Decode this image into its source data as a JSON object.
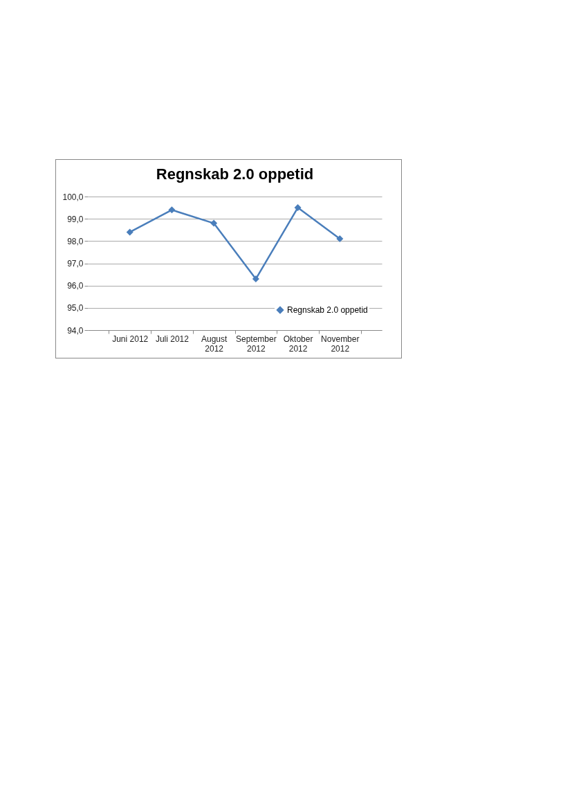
{
  "chart_data": {
    "type": "line",
    "title": "Regnskab 2.0 oppetid",
    "categories": [
      "Juni 2012",
      "Juli 2012",
      "August 2012",
      "September 2012",
      "Oktober 2012",
      "November 2012"
    ],
    "series": [
      {
        "name": "Regnskab 2.0 oppetid",
        "color": "#4a7ebb",
        "values": [
          98.4,
          99.4,
          98.8,
          96.3,
          99.5,
          98.1
        ]
      }
    ],
    "ylim": [
      94,
      100
    ],
    "yticks": [
      {
        "value": 94,
        "label": "94,0"
      },
      {
        "value": 95,
        "label": "95,0"
      },
      {
        "value": 96,
        "label": "96,0"
      },
      {
        "value": 97,
        "label": "97,0"
      },
      {
        "value": 98,
        "label": "98,0"
      },
      {
        "value": 99,
        "label": "99,0"
      },
      {
        "value": 100,
        "label": "100,0"
      }
    ],
    "grid": "y",
    "legend": "bottom right",
    "marker": "diamond",
    "line_style": "solid"
  }
}
